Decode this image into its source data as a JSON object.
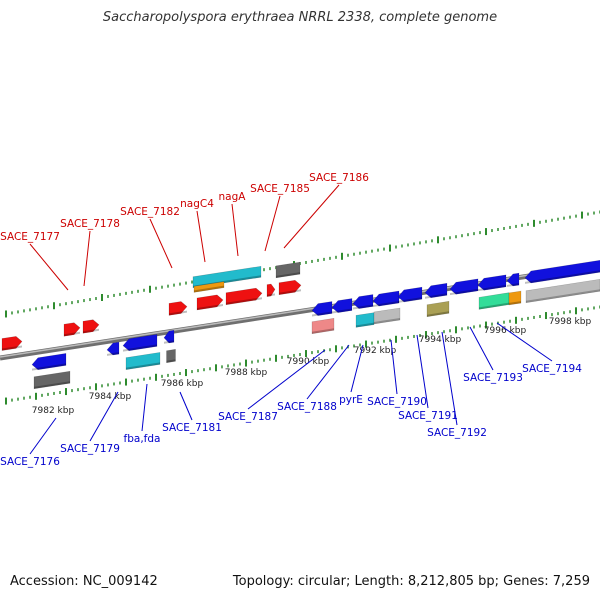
{
  "title": "Saccharopolyspora erythraea NRRL 2338, complete genome",
  "footer": {
    "accession": "Accession: NC_009142",
    "summary": "Topology: circular; Length: 8,212,805 bp; Genes: 7,259"
  },
  "colors": {
    "label_forward": "#cc0000",
    "label_reverse": "#0000cc",
    "backbone": "#888888",
    "tick": "#2e8b2e"
  },
  "scale_labels": [
    "7982 kbp",
    "7984 kbp",
    "7986 kbp",
    "7988 kbp",
    "7990 kbp",
    "7992 kbp",
    "7994 kbp",
    "7996 kbp",
    "7998 kbp"
  ],
  "gene_labels_forward": [
    "SACE_7177",
    "SACE_7178",
    "SACE_7182",
    "nagC4",
    "nagA",
    "SACE_7185",
    "SACE_7186"
  ],
  "gene_labels_reverse": [
    "SACE_7176",
    "SACE_7179",
    "fba,fda",
    "SACE_7181",
    "SACE_7187",
    "SACE_7188",
    "pyrE",
    "SACE_7190",
    "SACE_7191",
    "SACE_7192",
    "SACE_7193",
    "SACE_7194"
  ],
  "features": [
    {
      "name": "forward-gene",
      "color": "#ee1111"
    },
    {
      "name": "reverse-gene",
      "color": "#1111dd"
    },
    {
      "name": "rna-feature",
      "color": "#22bbcc"
    },
    {
      "name": "misc-feature",
      "color": "#666666"
    },
    {
      "name": "pseudo-feature",
      "color": "#bbbbbb"
    },
    {
      "name": "mobile-feature",
      "color": "#33dd99"
    },
    {
      "name": "repeat-feature",
      "color": "#ee9911"
    },
    {
      "name": "other-feature",
      "color": "#ee8888"
    },
    {
      "name": "regulatory-feature",
      "color": "#aaa055"
    }
  ]
}
